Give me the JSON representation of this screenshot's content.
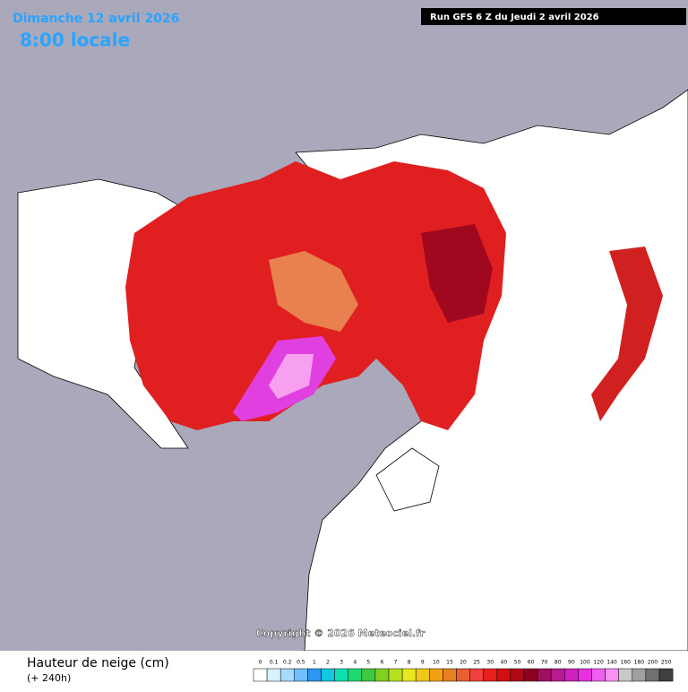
{
  "header": {
    "date": "Dimanche 12 avril 2026",
    "time": "8:00 locale",
    "run": "Run GFS 6 Z du Jeudi 2 avril 2026"
  },
  "copyright": "Copyright © 2026 Meteociel.fr",
  "legend": {
    "title": "Hauteur de neige (cm)",
    "subtitle": "(+ 240h)",
    "items": [
      {
        "label": "0",
        "color": "#ffffff"
      },
      {
        "label": "0.1",
        "color": "#d8f0ff"
      },
      {
        "label": "0.2",
        "color": "#a8dcff"
      },
      {
        "label": "0.5",
        "color": "#6ec0ff"
      },
      {
        "label": "1",
        "color": "#2e96f0"
      },
      {
        "label": "2",
        "color": "#10c8e0"
      },
      {
        "label": "3",
        "color": "#10e0b0"
      },
      {
        "label": "4",
        "color": "#20d870"
      },
      {
        "label": "5",
        "color": "#40c840"
      },
      {
        "label": "6",
        "color": "#80d020"
      },
      {
        "label": "7",
        "color": "#b8e020"
      },
      {
        "label": "8",
        "color": "#e8e820"
      },
      {
        "label": "9",
        "color": "#f0c818"
      },
      {
        "label": "10",
        "color": "#f0a010"
      },
      {
        "label": "15",
        "color": "#e88020"
      },
      {
        "label": "20",
        "color": "#e86030"
      },
      {
        "label": "25",
        "color": "#f04040"
      },
      {
        "label": "30",
        "color": "#e82020"
      },
      {
        "label": "40",
        "color": "#d01010"
      },
      {
        "label": "50",
        "color": "#b00818"
      },
      {
        "label": "60",
        "color": "#900020"
      },
      {
        "label": "70",
        "color": "#a01060"
      },
      {
        "label": "80",
        "color": "#b81890"
      },
      {
        "label": "90",
        "color": "#d020c0"
      },
      {
        "label": "100",
        "color": "#e830e0"
      },
      {
        "label": "120",
        "color": "#f060f0"
      },
      {
        "label": "140",
        "color": "#f890f0"
      },
      {
        "label": "160",
        "color": "#c8c8c8"
      },
      {
        "label": "180",
        "color": "#a0a0a0"
      },
      {
        "label": "200",
        "color": "#707070"
      },
      {
        "label": "250",
        "color": "#404040"
      }
    ]
  }
}
